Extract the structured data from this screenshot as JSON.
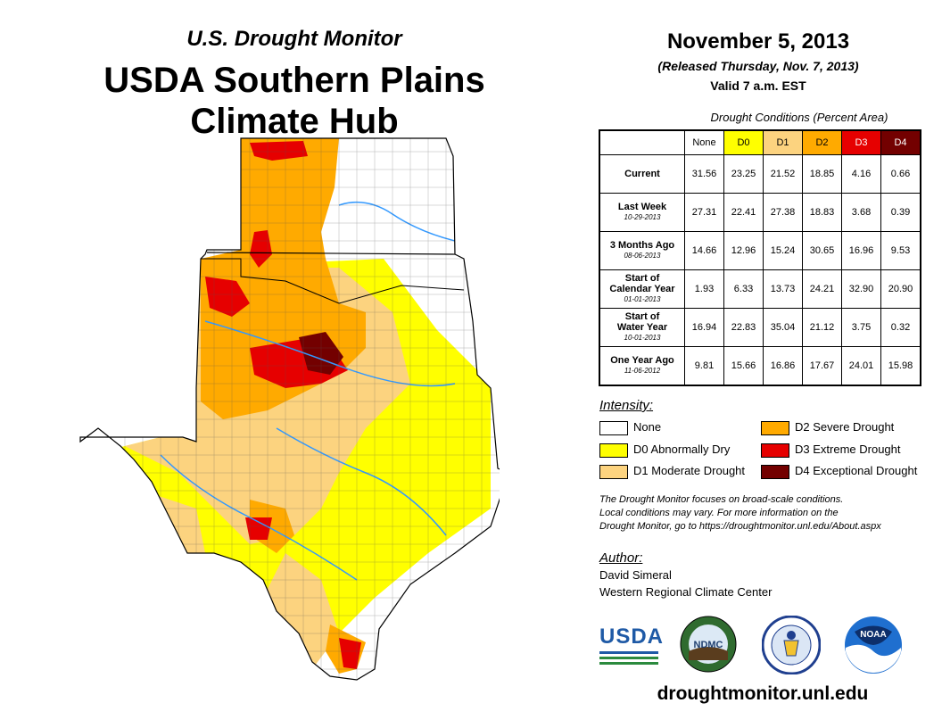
{
  "header": {
    "subtitle": "U.S. Drought Monitor",
    "title_line1": "USDA Southern Plains",
    "title_line2": "Climate Hub"
  },
  "info": {
    "date": "November 5, 2013",
    "released": "(Released Thursday, Nov. 7, 2013)",
    "valid": "Valid 7 a.m. EST"
  },
  "table": {
    "caption": "Drought Conditions (Percent Area)",
    "columns": [
      "None",
      "D0",
      "D1",
      "D2",
      "D3",
      "D4"
    ],
    "column_colors": [
      "#ffffff",
      "#ffff00",
      "#fcd37f",
      "#ffaa00",
      "#e60000",
      "#730000"
    ],
    "column_text_colors": [
      "#000000",
      "#000000",
      "#000000",
      "#000000",
      "#ffffff",
      "#ffffff"
    ],
    "rows": [
      {
        "label_line1": "Current",
        "label_line2": "",
        "date": "",
        "values": [
          "31.56",
          "23.25",
          "21.52",
          "18.85",
          "4.16",
          "0.66"
        ]
      },
      {
        "label_line1": "Last Week",
        "label_line2": "",
        "date": "10-29-2013",
        "values": [
          "27.31",
          "22.41",
          "27.38",
          "18.83",
          "3.68",
          "0.39"
        ]
      },
      {
        "label_line1": "3 Months Ago",
        "label_line2": "",
        "date": "08-06-2013",
        "values": [
          "14.66",
          "12.96",
          "15.24",
          "30.65",
          "16.96",
          "9.53"
        ]
      },
      {
        "label_line1": "Start of",
        "label_line2": "Calendar Year",
        "date": "01-01-2013",
        "values": [
          "1.93",
          "6.33",
          "13.73",
          "24.21",
          "32.90",
          "20.90"
        ]
      },
      {
        "label_line1": "Start of",
        "label_line2": "Water Year",
        "date": "10-01-2013",
        "values": [
          "16.94",
          "22.83",
          "35.04",
          "21.12",
          "3.75",
          "0.32"
        ]
      },
      {
        "label_line1": "One Year Ago",
        "label_line2": "",
        "date": "11-06-2012",
        "values": [
          "9.81",
          "15.66",
          "16.86",
          "17.67",
          "24.01",
          "15.98"
        ]
      }
    ]
  },
  "legend": {
    "title": "Intensity:",
    "items": [
      {
        "label": "None",
        "color": "#ffffff"
      },
      {
        "label": "D0 Abnormally Dry",
        "color": "#ffff00"
      },
      {
        "label": "D1 Moderate Drought",
        "color": "#fcd37f"
      },
      {
        "label": "D2 Severe Drought",
        "color": "#ffaa00"
      },
      {
        "label": "D3 Extreme Drought",
        "color": "#e60000"
      },
      {
        "label": "D4 Exceptional Drought",
        "color": "#730000"
      }
    ]
  },
  "note": {
    "line1": "The Drought Monitor focuses on broad-scale conditions.",
    "line2": "Local conditions may vary. For more information on the",
    "line3": "Drought Monitor, go to https://droughtmonitor.unl.edu/About.aspx"
  },
  "author": {
    "title": "Author:",
    "name": "David Simeral",
    "org": "Western Regional Climate Center"
  },
  "logos": {
    "usda": "USDA",
    "ndmc": "NDMC",
    "noaa": "NOAA"
  },
  "website": "droughtmonitor.unl.edu"
}
